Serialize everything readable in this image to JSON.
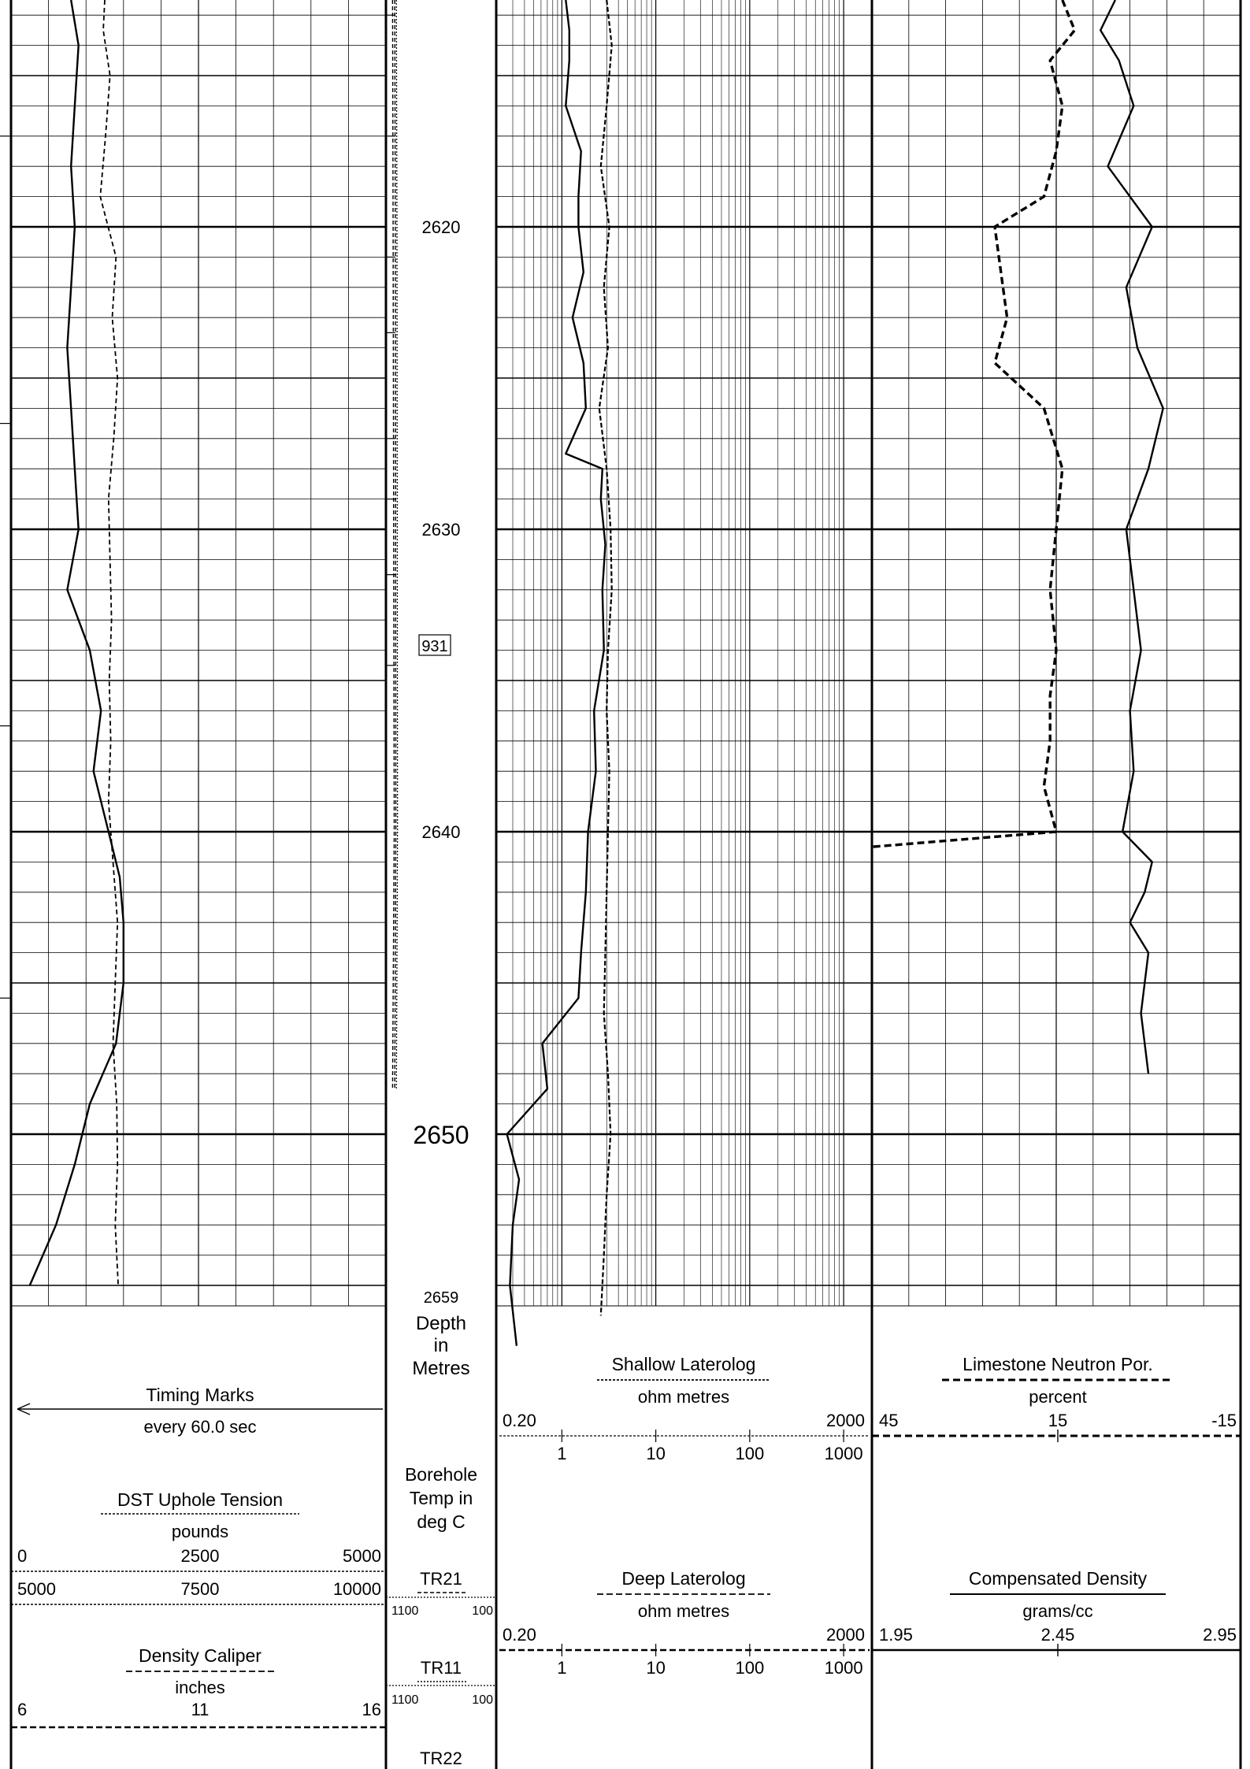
{
  "depth_track": {
    "depth_labels": [
      "2620",
      "2630",
      "2640",
      "2650",
      "2659"
    ],
    "marker_box": "931",
    "header_label_lines": [
      "Depth",
      "in",
      "Metres"
    ]
  },
  "headers": {
    "timing": {
      "title": "Timing Marks",
      "sub": "every 60.0 sec"
    },
    "tension": {
      "title": "DST Uphole Tension",
      "unit": "pounds",
      "scale1": [
        "0",
        "2500",
        "5000"
      ],
      "scale2": [
        "5000",
        "7500",
        "10000"
      ]
    },
    "caliper": {
      "title": "Density Caliper",
      "unit": "inches",
      "scale": [
        "6",
        "11",
        "16"
      ]
    },
    "temp": {
      "lines": [
        "Borehole",
        "Temp in",
        "deg C"
      ],
      "tr21": "TR21",
      "tr11": "TR11",
      "tr22": "TR22",
      "scale_left": "1100",
      "scale_right": "100"
    },
    "shallow": {
      "title": "Shallow Laterolog",
      "unit": "ohm metres",
      "min": "0.20",
      "max": "2000",
      "ticks": [
        "1",
        "10",
        "100",
        "1000"
      ]
    },
    "deep": {
      "title": "Deep Laterolog",
      "unit": "ohm metres",
      "min": "0.20",
      "max": "2000",
      "ticks": [
        "1",
        "10",
        "100",
        "1000"
      ]
    },
    "neutron": {
      "title": "Limestone Neutron Por.",
      "unit": "percent",
      "scale": [
        "45",
        "15",
        "-15"
      ]
    },
    "density": {
      "title": "Compensated Density",
      "unit": "grams/cc",
      "scale": [
        "1.95",
        "2.45",
        "2.95"
      ]
    }
  },
  "chart_data": {
    "type": "line",
    "y_axis": {
      "label": "Depth in Metres",
      "range": [
        2612.5,
        2659
      ],
      "reversed": true
    },
    "series": [
      {
        "name": "Shallow Laterolog",
        "unit": "ohm metres",
        "scale": "log",
        "range": [
          0.2,
          2000
        ],
        "depth": [
          2612.5,
          2614,
          2616,
          2618,
          2620,
          2622,
          2624,
          2626,
          2628,
          2630,
          2632,
          2634,
          2636,
          2638,
          2640,
          2642,
          2644,
          2646,
          2648,
          2650,
          2652,
          2654,
          2656
        ],
        "values": [
          3,
          3.4,
          3,
          2.6,
          3.2,
          2.8,
          3.1,
          2.5,
          3,
          3.3,
          3.4,
          3.1,
          3,
          3.2,
          3.1,
          3,
          2.9,
          2.8,
          3.1,
          3.3,
          3,
          2.8,
          2.6
        ]
      },
      {
        "name": "Deep Laterolog",
        "unit": "ohm metres",
        "scale": "log",
        "range": [
          0.2,
          2000
        ],
        "depth": [
          2612.5,
          2613.5,
          2614.5,
          2616,
          2617.5,
          2619,
          2620,
          2621.5,
          2623,
          2624.5,
          2626,
          2627.5,
          2628,
          2629,
          2630.5,
          2632,
          2634,
          2636,
          2638,
          2640,
          2642,
          2644,
          2645.5,
          2647,
          2648.5,
          2650,
          2651.5,
          2653,
          2655,
          2657
        ],
        "values": [
          1.1,
          1.2,
          1.2,
          1.1,
          1.6,
          1.5,
          1.5,
          1.7,
          1.3,
          1.7,
          1.8,
          1.1,
          2.7,
          2.6,
          2.9,
          2.7,
          2.8,
          2.2,
          2.3,
          1.9,
          1.8,
          1.6,
          1.5,
          0.62,
          0.7,
          0.26,
          0.35,
          0.3,
          0.28,
          0.33
        ]
      },
      {
        "name": "Limestone Neutron Por.",
        "unit": "percent",
        "range": [
          45,
          -15
        ],
        "depth": [
          2612.5,
          2613.5,
          2614.5,
          2616,
          2617.5,
          2619,
          2620,
          2621.5,
          2623,
          2624.5,
          2626,
          2628,
          2630,
          2632,
          2634,
          2635.5,
          2637,
          2638.5,
          2640,
          2640.5
        ],
        "values": [
          14,
          12,
          16,
          14,
          15,
          17,
          25,
          24,
          23,
          25,
          17,
          14,
          15,
          16,
          15,
          16,
          16,
          17,
          15,
          45
        ]
      },
      {
        "name": "Compensated Density",
        "unit": "grams/cc",
        "range": [
          1.95,
          2.95
        ],
        "depth": [
          2612.5,
          2613.5,
          2614.5,
          2616,
          2618,
          2620,
          2622,
          2624,
          2626,
          2628,
          2630,
          2632,
          2634,
          2636,
          2638,
          2640,
          2641,
          2642,
          2643,
          2644,
          2646,
          2648
        ],
        "values": [
          2.61,
          2.57,
          2.62,
          2.66,
          2.59,
          2.71,
          2.64,
          2.67,
          2.74,
          2.7,
          2.64,
          2.66,
          2.68,
          2.65,
          2.66,
          2.63,
          2.71,
          2.69,
          2.65,
          2.7,
          2.68,
          2.7
        ]
      },
      {
        "name": "DST Uphole Tension",
        "unit": "pounds",
        "range": [
          0,
          5000
        ],
        "depth": [
          2612.5,
          2613.5,
          2615,
          2617,
          2619,
          2621,
          2623,
          2625,
          2627,
          2629,
          2631,
          2633,
          2635,
          2637,
          2639,
          2641,
          2643,
          2645,
          2647,
          2649,
          2651,
          2653,
          2655
        ],
        "values": [
          1250,
          1230,
          1320,
          1260,
          1190,
          1400,
          1350,
          1420,
          1370,
          1300,
          1320,
          1340,
          1310,
          1330,
          1300,
          1360,
          1420,
          1390,
          1360,
          1410,
          1420,
          1390,
          1430
        ]
      },
      {
        "name": "Density Caliper",
        "unit": "inches",
        "range": [
          6,
          16
        ],
        "depth": [
          2612.5,
          2614,
          2616,
          2618,
          2620,
          2622,
          2624,
          2626,
          2628,
          2630,
          2632,
          2634,
          2636,
          2638,
          2640,
          2641.5,
          2643,
          2645,
          2647,
          2649,
          2651,
          2653,
          2655
        ],
        "values": [
          7.6,
          7.8,
          7.7,
          7.6,
          7.7,
          7.6,
          7.5,
          7.6,
          7.7,
          7.8,
          7.5,
          8.1,
          8.4,
          8.2,
          8.6,
          8.9,
          9,
          9,
          8.8,
          8.1,
          7.7,
          7.2,
          6.5
        ]
      },
      {
        "name": "Borehole Temp TR21",
        "unit": "deg C",
        "range": [
          1100,
          100
        ],
        "depth": [
          2612.5,
          2620,
          2630,
          2640,
          2648.5
        ],
        "values": [
          1040,
          1035,
          1030,
          1025,
          1040
        ]
      },
      {
        "name": "Borehole Temp TR11",
        "unit": "deg C",
        "range": [
          1100,
          100
        ],
        "depth": [
          2612.5,
          2620,
          2630,
          2640,
          2648.5
        ],
        "values": [
          1020,
          1015,
          1012,
          1010,
          1020
        ]
      },
      {
        "name": "Borehole Temp TR22",
        "unit": "deg C",
        "range": [
          1100,
          100
        ],
        "depth": [
          2612.5,
          2620,
          2630,
          2640,
          2648.5
        ],
        "values": [
          1005,
          1000,
          997,
          995,
          1005
        ]
      }
    ]
  }
}
